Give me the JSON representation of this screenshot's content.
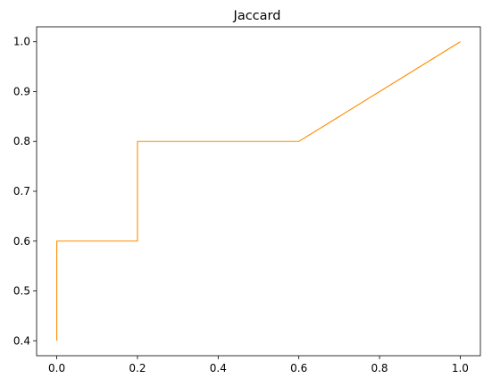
{
  "chart_data": {
    "type": "line",
    "title": "Jaccard",
    "xlabel": "",
    "ylabel": "",
    "xlim": [
      -0.05,
      1.05
    ],
    "ylim": [
      0.37,
      1.03
    ],
    "x_ticks": [
      0.0,
      0.2,
      0.4,
      0.6,
      0.8,
      1.0
    ],
    "x_tick_labels": [
      "0.0",
      "0.2",
      "0.4",
      "0.6",
      "0.8",
      "1.0"
    ],
    "y_ticks": [
      0.4,
      0.5,
      0.6,
      0.7,
      0.8,
      0.9,
      1.0
    ],
    "y_tick_labels": [
      "0.4",
      "0.5",
      "0.6",
      "0.7",
      "0.8",
      "0.9",
      "1.0"
    ],
    "grid": false,
    "series": [
      {
        "color": "#ff8c00",
        "x": [
          0.0,
          0.0,
          0.2,
          0.2,
          0.6,
          1.0
        ],
        "y": [
          0.4,
          0.6,
          0.6,
          0.8,
          0.8,
          1.0
        ]
      }
    ]
  }
}
